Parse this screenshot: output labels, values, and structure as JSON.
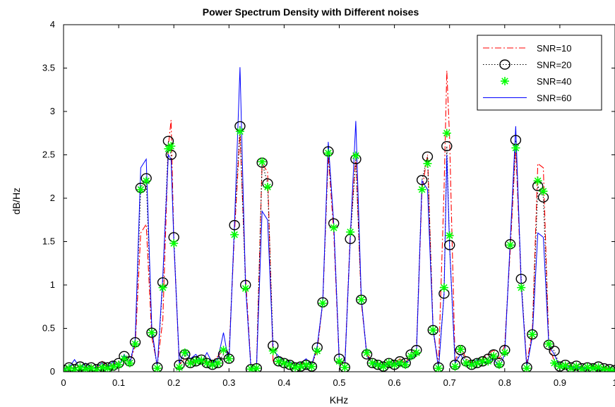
{
  "chart_data": {
    "type": "line",
    "title": "Power Spectrum Density with Different noises",
    "xlabel": "KHz",
    "ylabel": "dB/Hz",
    "xlim": [
      0,
      1
    ],
    "ylim": [
      0,
      4
    ],
    "xticks": [
      0,
      0.1,
      0.2,
      0.3,
      0.4,
      0.5,
      0.6,
      0.7,
      0.8,
      0.9,
      1
    ],
    "xtick_labels": [
      "0",
      "0.1",
      "0.2",
      "0.3",
      "0.4",
      "0.5",
      "0.6",
      "0.7",
      "0.8",
      "0.9",
      "1"
    ],
    "yticks": [
      0,
      0.5,
      1,
      1.5,
      2,
      2.5,
      3,
      3.5,
      4
    ],
    "ytick_labels": [
      "0",
      "0.5",
      "1",
      "1.5",
      "2",
      "2.5",
      "3",
      "3.5",
      "4"
    ],
    "grid": false,
    "legend_position": "top-right",
    "series": [
      {
        "name": "SNR=10",
        "color": "#ff0000",
        "style": "dashdot",
        "marker": "none",
        "x": [
          0.0,
          0.01,
          0.02,
          0.03,
          0.04,
          0.05,
          0.06,
          0.07,
          0.08,
          0.09,
          0.1,
          0.11,
          0.12,
          0.13,
          0.14,
          0.15,
          0.16,
          0.17,
          0.18,
          0.19,
          0.195,
          0.2,
          0.21,
          0.22,
          0.23,
          0.24,
          0.25,
          0.26,
          0.27,
          0.28,
          0.29,
          0.3,
          0.31,
          0.32,
          0.33,
          0.34,
          0.35,
          0.36,
          0.37,
          0.38,
          0.39,
          0.4,
          0.41,
          0.42,
          0.43,
          0.44,
          0.45,
          0.46,
          0.47,
          0.48,
          0.49,
          0.5,
          0.51,
          0.52,
          0.53,
          0.54,
          0.55,
          0.56,
          0.57,
          0.58,
          0.59,
          0.6,
          0.61,
          0.62,
          0.63,
          0.64,
          0.65,
          0.66,
          0.67,
          0.68,
          0.69,
          0.695,
          0.7,
          0.71,
          0.72,
          0.73,
          0.74,
          0.75,
          0.76,
          0.77,
          0.78,
          0.79,
          0.8,
          0.81,
          0.82,
          0.83,
          0.84,
          0.85,
          0.86,
          0.87,
          0.88,
          0.89,
          0.9,
          0.91,
          0.92,
          0.93,
          0.94,
          0.95,
          0.96,
          0.97,
          0.98,
          0.99,
          1.0
        ],
        "y": [
          0.02,
          0.06,
          0.03,
          0.08,
          0.04,
          0.07,
          0.03,
          0.12,
          0.05,
          0.08,
          0.12,
          0.14,
          0.1,
          0.3,
          1.6,
          1.7,
          0.4,
          0.08,
          0.6,
          2.6,
          2.9,
          1.5,
          0.08,
          0.15,
          0.1,
          0.12,
          0.14,
          0.1,
          0.12,
          0.18,
          0.25,
          0.2,
          1.6,
          2.75,
          1.1,
          0.05,
          0.05,
          2.4,
          2.3,
          0.1,
          0.12,
          0.08,
          0.1,
          0.06,
          0.09,
          0.1,
          0.08,
          0.25,
          0.8,
          2.5,
          1.6,
          0.1,
          0.06,
          1.6,
          2.5,
          0.8,
          0.2,
          0.12,
          0.1,
          0.08,
          0.12,
          0.1,
          0.15,
          0.1,
          0.2,
          0.25,
          2.1,
          2.5,
          0.5,
          0.08,
          2.1,
          3.47,
          2.7,
          0.12,
          0.3,
          0.15,
          0.1,
          0.12,
          0.15,
          0.2,
          0.25,
          0.15,
          0.3,
          1.4,
          2.6,
          1.0,
          0.1,
          0.45,
          2.4,
          2.35,
          0.3,
          0.12,
          0.08,
          0.1,
          0.06,
          0.08,
          0.04,
          0.06,
          0.05,
          0.07,
          0.05,
          0.03,
          0.02
        ]
      },
      {
        "name": "SNR=20",
        "color": "#000000",
        "style": "dotted",
        "marker": "circle",
        "x": [
          0.0,
          0.01,
          0.02,
          0.03,
          0.04,
          0.05,
          0.06,
          0.07,
          0.08,
          0.09,
          0.1,
          0.11,
          0.12,
          0.13,
          0.14,
          0.15,
          0.16,
          0.17,
          0.18,
          0.19,
          0.195,
          0.2,
          0.21,
          0.22,
          0.23,
          0.24,
          0.25,
          0.26,
          0.27,
          0.28,
          0.29,
          0.3,
          0.31,
          0.32,
          0.33,
          0.34,
          0.35,
          0.36,
          0.37,
          0.38,
          0.39,
          0.4,
          0.41,
          0.42,
          0.43,
          0.44,
          0.45,
          0.46,
          0.47,
          0.48,
          0.49,
          0.5,
          0.51,
          0.52,
          0.53,
          0.54,
          0.55,
          0.56,
          0.57,
          0.58,
          0.59,
          0.6,
          0.61,
          0.62,
          0.63,
          0.64,
          0.65,
          0.66,
          0.67,
          0.68,
          0.69,
          0.695,
          0.7,
          0.71,
          0.72,
          0.73,
          0.74,
          0.75,
          0.76,
          0.77,
          0.78,
          0.79,
          0.8,
          0.81,
          0.82,
          0.83,
          0.84,
          0.85,
          0.86,
          0.87,
          0.88,
          0.89,
          0.9,
          0.91,
          0.92,
          0.93,
          0.94,
          0.95,
          0.96,
          0.97,
          0.98,
          0.99,
          1.0
        ],
        "y": [
          0.02,
          0.05,
          0.03,
          0.06,
          0.04,
          0.05,
          0.03,
          0.06,
          0.05,
          0.07,
          0.1,
          0.18,
          0.12,
          0.34,
          2.12,
          2.23,
          0.45,
          0.05,
          1.03,
          2.66,
          2.5,
          1.55,
          0.08,
          0.2,
          0.1,
          0.12,
          0.14,
          0.1,
          0.08,
          0.1,
          0.2,
          0.15,
          1.69,
          2.83,
          1.0,
          0.03,
          0.04,
          2.41,
          2.17,
          0.3,
          0.12,
          0.1,
          0.08,
          0.05,
          0.06,
          0.08,
          0.06,
          0.28,
          0.8,
          2.54,
          1.71,
          0.15,
          0.05,
          1.53,
          2.45,
          0.83,
          0.2,
          0.1,
          0.08,
          0.06,
          0.1,
          0.08,
          0.12,
          0.1,
          0.2,
          0.25,
          2.21,
          2.48,
          0.48,
          0.05,
          0.9,
          2.6,
          1.46,
          0.08,
          0.25,
          0.12,
          0.08,
          0.1,
          0.12,
          0.15,
          0.2,
          0.1,
          0.25,
          1.47,
          2.67,
          1.07,
          0.05,
          0.43,
          2.14,
          2.01,
          0.31,
          0.24,
          0.06,
          0.08,
          0.05,
          0.07,
          0.04,
          0.05,
          0.04,
          0.06,
          0.04,
          0.03,
          0.02
        ]
      },
      {
        "name": "SNR=40",
        "color": "#00ff00",
        "style": "none",
        "marker": "asterisk",
        "x": [
          0.0,
          0.01,
          0.02,
          0.03,
          0.04,
          0.05,
          0.06,
          0.07,
          0.08,
          0.09,
          0.1,
          0.11,
          0.12,
          0.13,
          0.14,
          0.15,
          0.16,
          0.17,
          0.18,
          0.19,
          0.195,
          0.2,
          0.21,
          0.22,
          0.23,
          0.24,
          0.25,
          0.26,
          0.27,
          0.28,
          0.29,
          0.3,
          0.31,
          0.32,
          0.33,
          0.34,
          0.35,
          0.36,
          0.37,
          0.38,
          0.39,
          0.4,
          0.41,
          0.42,
          0.43,
          0.44,
          0.45,
          0.46,
          0.47,
          0.48,
          0.49,
          0.5,
          0.51,
          0.52,
          0.53,
          0.54,
          0.55,
          0.56,
          0.57,
          0.58,
          0.59,
          0.6,
          0.61,
          0.62,
          0.63,
          0.64,
          0.65,
          0.66,
          0.67,
          0.68,
          0.69,
          0.695,
          0.7,
          0.71,
          0.72,
          0.73,
          0.74,
          0.75,
          0.76,
          0.77,
          0.78,
          0.79,
          0.8,
          0.81,
          0.82,
          0.83,
          0.84,
          0.85,
          0.86,
          0.87,
          0.88,
          0.89,
          0.9,
          0.91,
          0.92,
          0.93,
          0.94,
          0.95,
          0.96,
          0.97,
          0.98,
          0.99,
          1.0
        ],
        "y": [
          0.02,
          0.04,
          0.02,
          0.05,
          0.03,
          0.04,
          0.02,
          0.05,
          0.04,
          0.06,
          0.08,
          0.15,
          0.1,
          0.32,
          2.1,
          2.2,
          0.45,
          0.04,
          0.97,
          2.57,
          2.6,
          1.48,
          0.05,
          0.22,
          0.1,
          0.12,
          0.13,
          0.1,
          0.08,
          0.1,
          0.25,
          0.15,
          1.58,
          2.77,
          0.96,
          0.03,
          0.04,
          2.42,
          2.13,
          0.24,
          0.12,
          0.1,
          0.08,
          0.05,
          0.06,
          0.08,
          0.06,
          0.24,
          0.79,
          2.52,
          1.66,
          0.12,
          0.05,
          1.61,
          2.49,
          0.83,
          0.22,
          0.1,
          0.08,
          0.06,
          0.1,
          0.08,
          0.1,
          0.08,
          0.18,
          0.22,
          2.1,
          2.4,
          0.48,
          0.04,
          0.97,
          2.75,
          1.57,
          0.06,
          0.26,
          0.1,
          0.08,
          0.1,
          0.12,
          0.12,
          0.18,
          0.08,
          0.22,
          1.46,
          2.58,
          0.97,
          0.04,
          0.43,
          2.2,
          2.08,
          0.32,
          0.1,
          0.06,
          0.07,
          0.04,
          0.06,
          0.03,
          0.05,
          0.04,
          0.05,
          0.03,
          0.02,
          0.01
        ]
      },
      {
        "name": "SNR=60",
        "color": "#0000ff",
        "style": "solid",
        "marker": "none",
        "x": [
          0.0,
          0.01,
          0.02,
          0.03,
          0.04,
          0.05,
          0.06,
          0.07,
          0.08,
          0.09,
          0.1,
          0.11,
          0.12,
          0.13,
          0.14,
          0.15,
          0.16,
          0.17,
          0.18,
          0.19,
          0.195,
          0.2,
          0.21,
          0.22,
          0.23,
          0.24,
          0.25,
          0.26,
          0.27,
          0.28,
          0.29,
          0.3,
          0.31,
          0.32,
          0.33,
          0.34,
          0.35,
          0.36,
          0.37,
          0.38,
          0.39,
          0.4,
          0.41,
          0.42,
          0.43,
          0.44,
          0.45,
          0.46,
          0.47,
          0.48,
          0.49,
          0.5,
          0.51,
          0.52,
          0.53,
          0.54,
          0.55,
          0.56,
          0.57,
          0.58,
          0.59,
          0.6,
          0.61,
          0.62,
          0.63,
          0.64,
          0.65,
          0.66,
          0.67,
          0.68,
          0.69,
          0.695,
          0.7,
          0.71,
          0.72,
          0.73,
          0.74,
          0.75,
          0.76,
          0.77,
          0.78,
          0.79,
          0.8,
          0.81,
          0.82,
          0.83,
          0.84,
          0.85,
          0.86,
          0.87,
          0.88,
          0.89,
          0.9,
          0.91,
          0.92,
          0.93,
          0.94,
          0.95,
          0.96,
          0.97,
          0.98,
          0.99,
          1.0
        ],
        "y": [
          0.02,
          0.05,
          0.14,
          0.04,
          0.1,
          0.03,
          0.06,
          0.1,
          0.05,
          0.12,
          0.06,
          0.2,
          0.08,
          0.38,
          2.35,
          2.45,
          0.5,
          0.05,
          1.1,
          2.5,
          2.45,
          1.5,
          0.1,
          0.25,
          0.15,
          0.2,
          0.1,
          0.22,
          0.1,
          0.15,
          0.45,
          0.1,
          1.7,
          3.51,
          1.0,
          0.03,
          0.05,
          1.85,
          1.75,
          0.25,
          0.18,
          0.1,
          0.12,
          0.06,
          0.1,
          0.15,
          0.08,
          0.3,
          0.8,
          2.65,
          1.7,
          0.12,
          0.05,
          1.55,
          2.89,
          0.85,
          0.18,
          0.1,
          0.08,
          0.05,
          0.12,
          0.08,
          0.1,
          0.1,
          0.15,
          0.2,
          2.2,
          2.1,
          0.5,
          0.03,
          0.9,
          2.5,
          1.45,
          0.1,
          0.2,
          0.08,
          0.06,
          0.15,
          0.1,
          0.12,
          0.15,
          0.05,
          0.2,
          1.5,
          2.83,
          1.0,
          0.05,
          0.4,
          1.6,
          1.55,
          0.3,
          0.2,
          0.05,
          0.08,
          0.04,
          0.06,
          0.03,
          0.05,
          0.03,
          0.04,
          0.03,
          0.02,
          0.02
        ]
      }
    ]
  }
}
